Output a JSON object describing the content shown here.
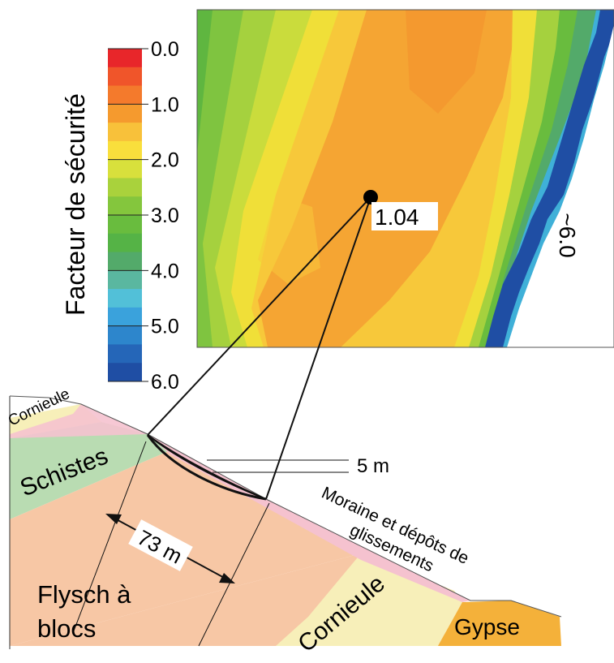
{
  "legend": {
    "title": "Facteur de sécurité",
    "ticks": [
      "0.0",
      "1.0",
      "2.0",
      "3.0",
      "4.0",
      "5.0",
      "6.0"
    ],
    "colors": [
      "#e8262a",
      "#f0552a",
      "#f47a2c",
      "#f59a2e",
      "#f8c13a",
      "#f9df3c",
      "#d8e03c",
      "#a9d23c",
      "#84c63d",
      "#69bc3e",
      "#55b346",
      "#53aa6a",
      "#5ab7a0",
      "#52c0d8",
      "#3aa2dc",
      "#2d86cc",
      "#2566b8",
      "#1f4ea4"
    ]
  },
  "map": {
    "point_value": "1.04",
    "edge_value": "~6.0"
  },
  "section": {
    "depth_label": "5 m",
    "width_label": "73 m",
    "layers": {
      "cornieule_top": "Cornieule",
      "schistes": "Schistes",
      "moraine": "Moraine et dépôts de glissements",
      "flysch": "Flysch à blocs",
      "cornieule_bottom": "Cornieule",
      "gypse": "Gypse"
    },
    "colors": {
      "flysch": "#f7c7a5",
      "schistes": "#b9dcb2",
      "cornieule": "#f7efb9",
      "gypse": "#f4b13a",
      "moraine": "#f5c2cf",
      "slip": "#f3e63a"
    }
  }
}
